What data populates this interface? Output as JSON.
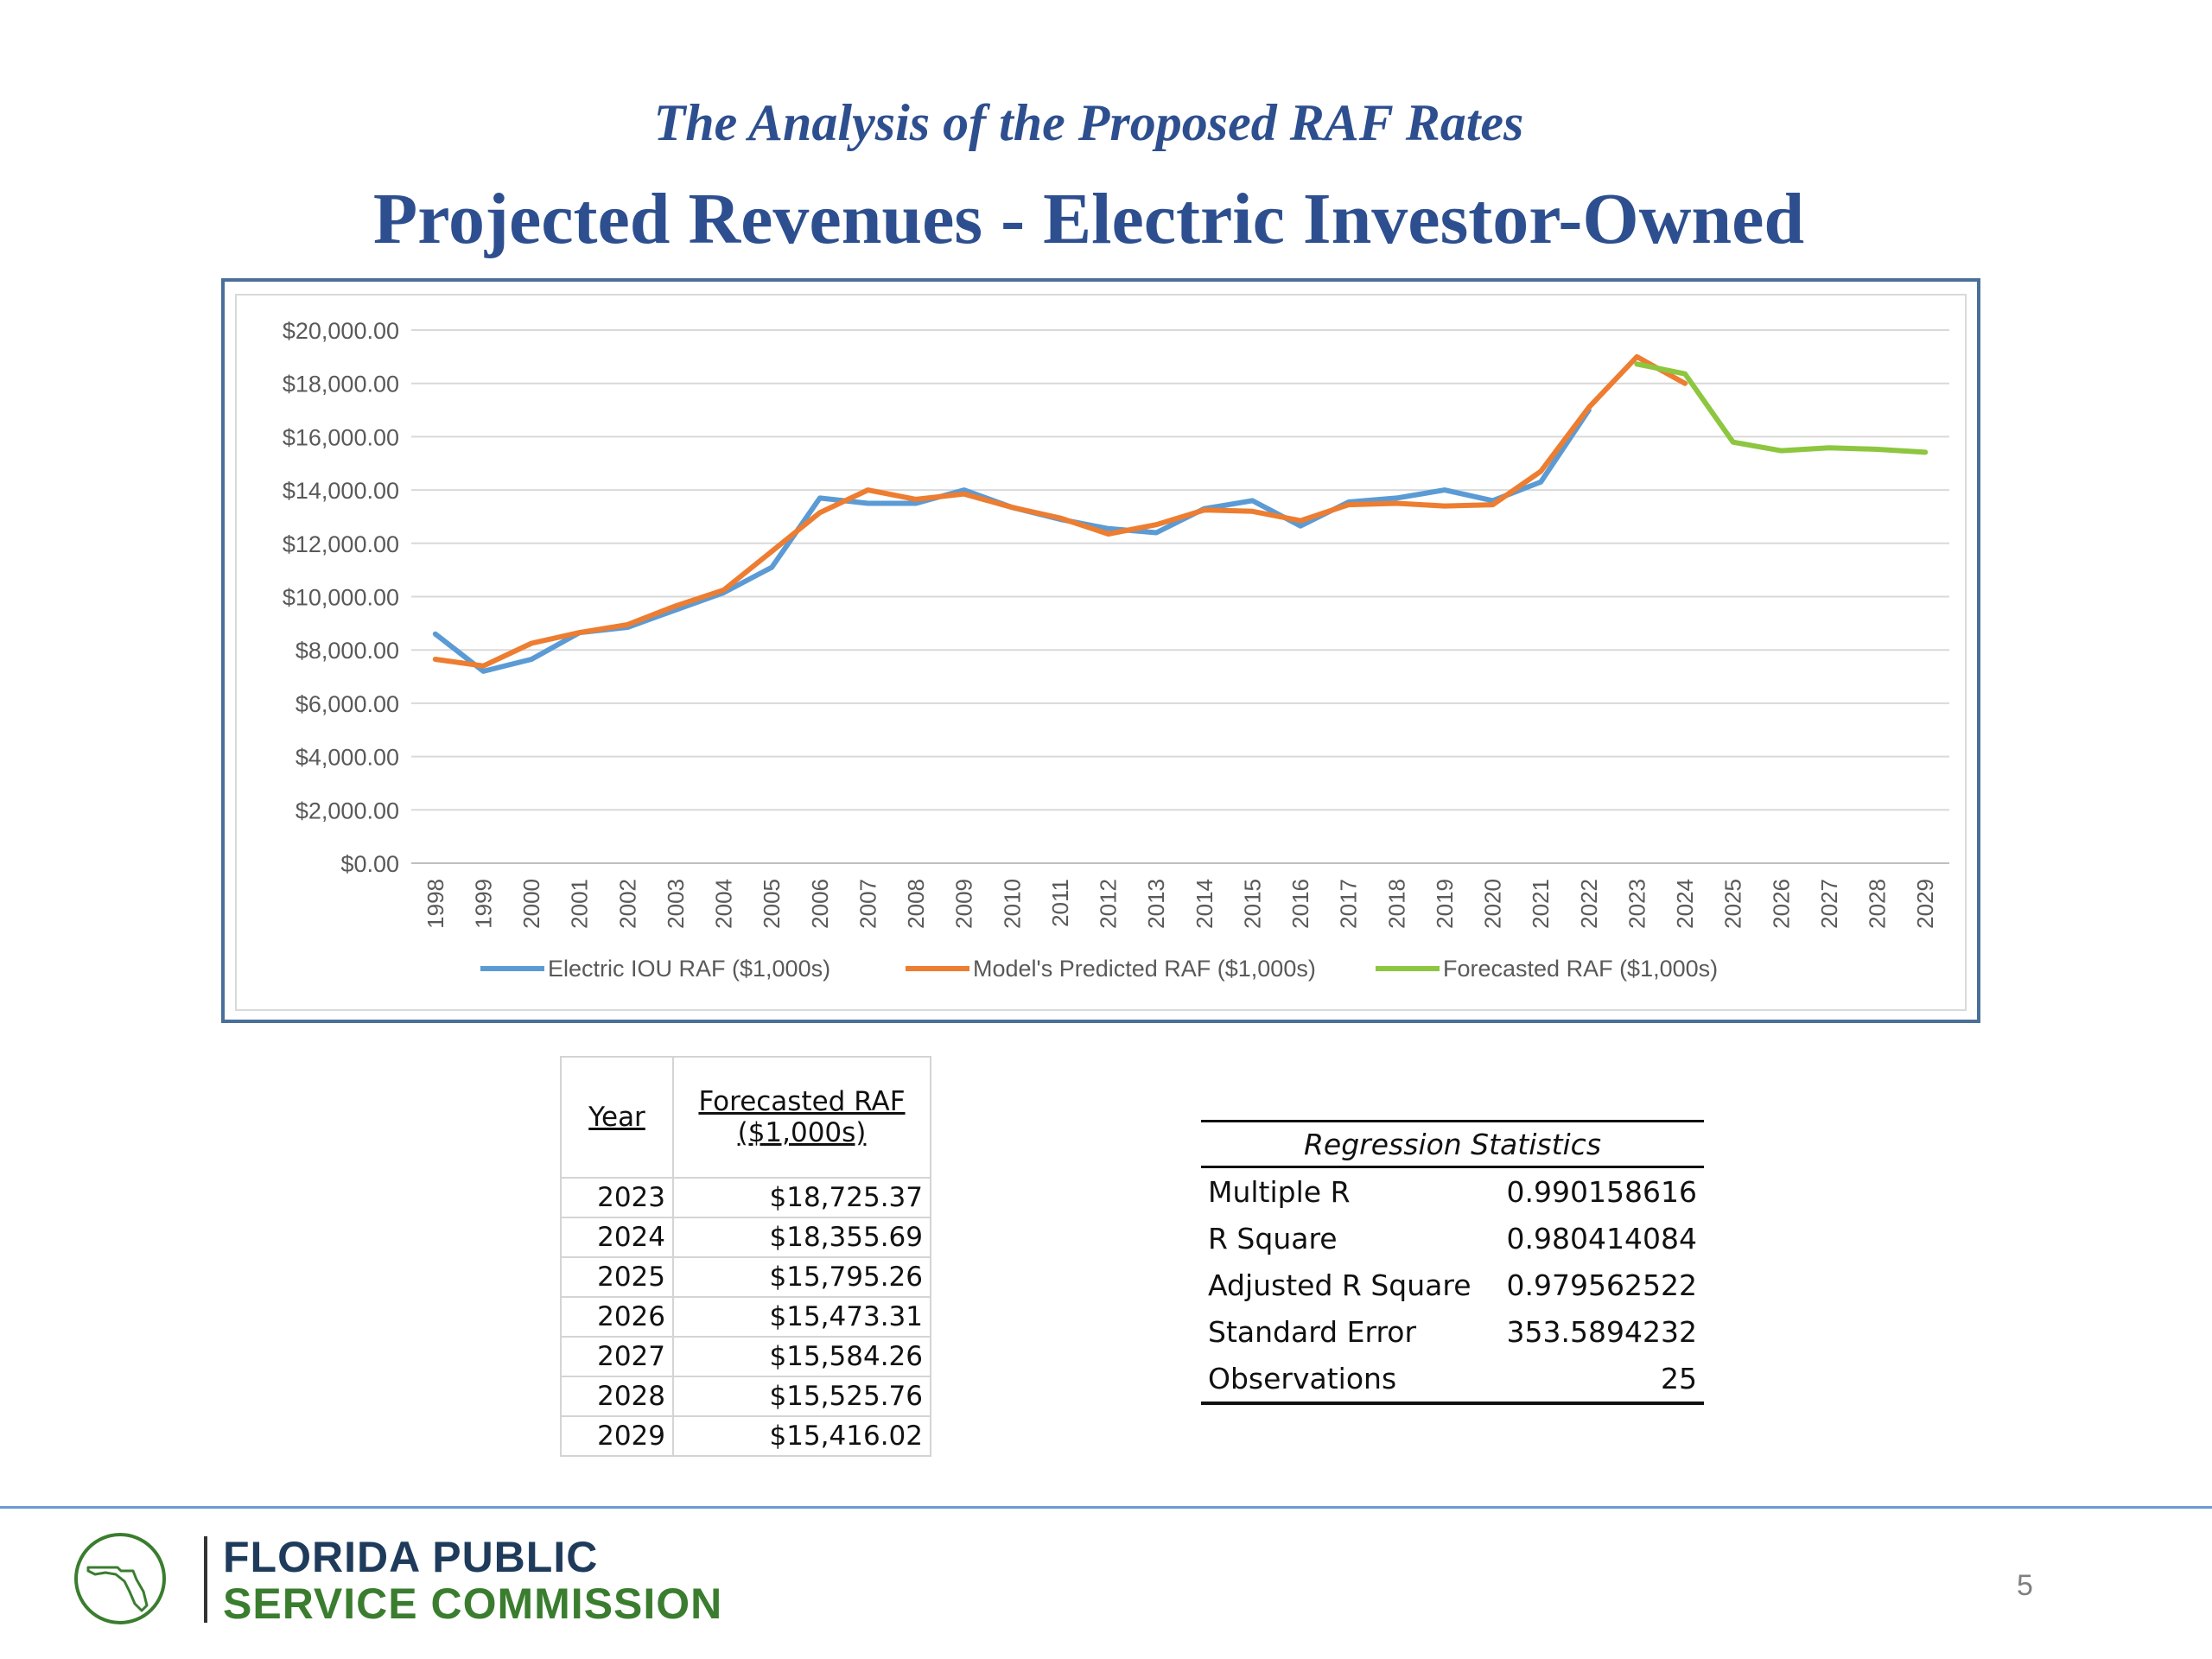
{
  "header": {
    "subtitle": "The Analysis of the Proposed RAF Rates",
    "title": "Projected Revenues - Electric Investor-Owned"
  },
  "chart_data": {
    "type": "line",
    "categories": [
      "1998",
      "1999",
      "2000",
      "2001",
      "2002",
      "2003",
      "2004",
      "2005",
      "2006",
      "2007",
      "2008",
      "2009",
      "2010",
      "2011",
      "2012",
      "2013",
      "2014",
      "2015",
      "2016",
      "2017",
      "2018",
      "2019",
      "2020",
      "2021",
      "2022",
      "2023",
      "2024",
      "2025",
      "2026",
      "2027",
      "2028",
      "2029"
    ],
    "y_ticks": [
      "$0.00",
      "$2,000.00",
      "$4,000.00",
      "$6,000.00",
      "$8,000.00",
      "$10,000.00",
      "$12,000.00",
      "$14,000.00",
      "$16,000.00",
      "$18,000.00",
      "$20,000.00"
    ],
    "ylim": [
      0,
      20000
    ],
    "grid": "horizontal",
    "legend": "bottom",
    "series": [
      {
        "name": "Electric IOU RAF ($1,000s)",
        "color": "#5b9bd5",
        "values": [
          8600,
          7200,
          7650,
          8650,
          8850,
          9500,
          10150,
          11100,
          13700,
          13500,
          13500,
          14000,
          13350,
          12900,
          12550,
          12400,
          13300,
          13600,
          12650,
          13550,
          13700,
          14000,
          13600,
          14300,
          17000,
          null,
          null,
          null,
          null,
          null,
          null,
          null
        ]
      },
      {
        "name": "Model's Predicted RAF ($1,000s)",
        "color": "#ed7d31",
        "values": [
          7650,
          7400,
          8250,
          8650,
          8950,
          9650,
          10250,
          11700,
          13150,
          14000,
          13650,
          13850,
          13350,
          12950,
          12350,
          12700,
          13250,
          13200,
          12850,
          13450,
          13500,
          13400,
          13450,
          14700,
          17100,
          19000,
          18000,
          null,
          null,
          null,
          null,
          null
        ]
      },
      {
        "name": "Forecasted RAF ($1,000s)",
        "color": "#8dc63f",
        "values": [
          null,
          null,
          null,
          null,
          null,
          null,
          null,
          null,
          null,
          null,
          null,
          null,
          null,
          null,
          null,
          null,
          null,
          null,
          null,
          null,
          null,
          null,
          null,
          null,
          null,
          18725.37,
          18355.69,
          15795.26,
          15473.31,
          15584.26,
          15525.76,
          15416.02
        ]
      }
    ]
  },
  "forecast_table": {
    "col_year": "Year",
    "col_raf_line1": "Forecasted RAF",
    "col_raf_line2": "($1,000s)",
    "rows": [
      {
        "year": "2023",
        "value": "$18,725.37"
      },
      {
        "year": "2024",
        "value": "$18,355.69"
      },
      {
        "year": "2025",
        "value": "$15,795.26"
      },
      {
        "year": "2026",
        "value": "$15,473.31"
      },
      {
        "year": "2027",
        "value": "$15,584.26"
      },
      {
        "year": "2028",
        "value": "$15,525.76"
      },
      {
        "year": "2029",
        "value": "$15,416.02"
      }
    ]
  },
  "regression": {
    "heading": "Regression Statistics",
    "rows": [
      {
        "label": "Multiple R",
        "value": "0.990158616"
      },
      {
        "label": "R Square",
        "value": "0.980414084"
      },
      {
        "label": "Adjusted R Square",
        "value": "0.979562522"
      },
      {
        "label": "Standard Error",
        "value": "353.5894232"
      },
      {
        "label": "Observations",
        "value": "25"
      }
    ]
  },
  "footer": {
    "org_line1": "FLORIDA PUBLIC",
    "org_line2": "SERVICE COMMISSION",
    "page_number": "5"
  }
}
